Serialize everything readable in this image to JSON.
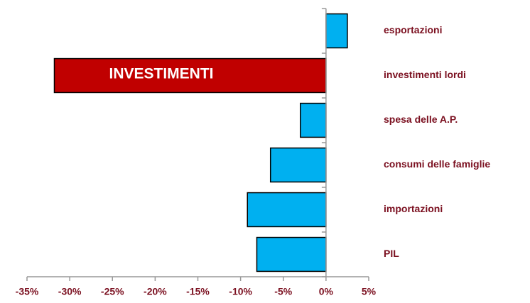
{
  "chart_data": {
    "type": "barh",
    "categories": [
      "esportazioni",
      "investimenti lordi",
      "spesa delle A.P.",
      "consumi  delle famiglie",
      "importazioni",
      "PIL"
    ],
    "values": [
      2.5,
      -31.8,
      -3.0,
      -6.5,
      -9.2,
      -8.1
    ],
    "colors": [
      "#00b0f0",
      "#c00000",
      "#00b0f0",
      "#00b0f0",
      "#00b0f0",
      "#00b0f0"
    ],
    "xlim": [
      -35,
      5
    ],
    "xticks": [
      {
        "value": -35,
        "label": "-35%"
      },
      {
        "value": -30,
        "label": "-30%"
      },
      {
        "value": -25,
        "label": "-25%"
      },
      {
        "value": -20,
        "label": "-20%"
      },
      {
        "value": -15,
        "label": "-15%"
      },
      {
        "value": -10,
        "label": "-10%"
      },
      {
        "value": -5,
        "label": "-5%"
      },
      {
        "value": 0,
        "label": "0%"
      },
      {
        "value": 5,
        "label": "5%"
      }
    ],
    "annotation": "INVESTIMENTI"
  }
}
